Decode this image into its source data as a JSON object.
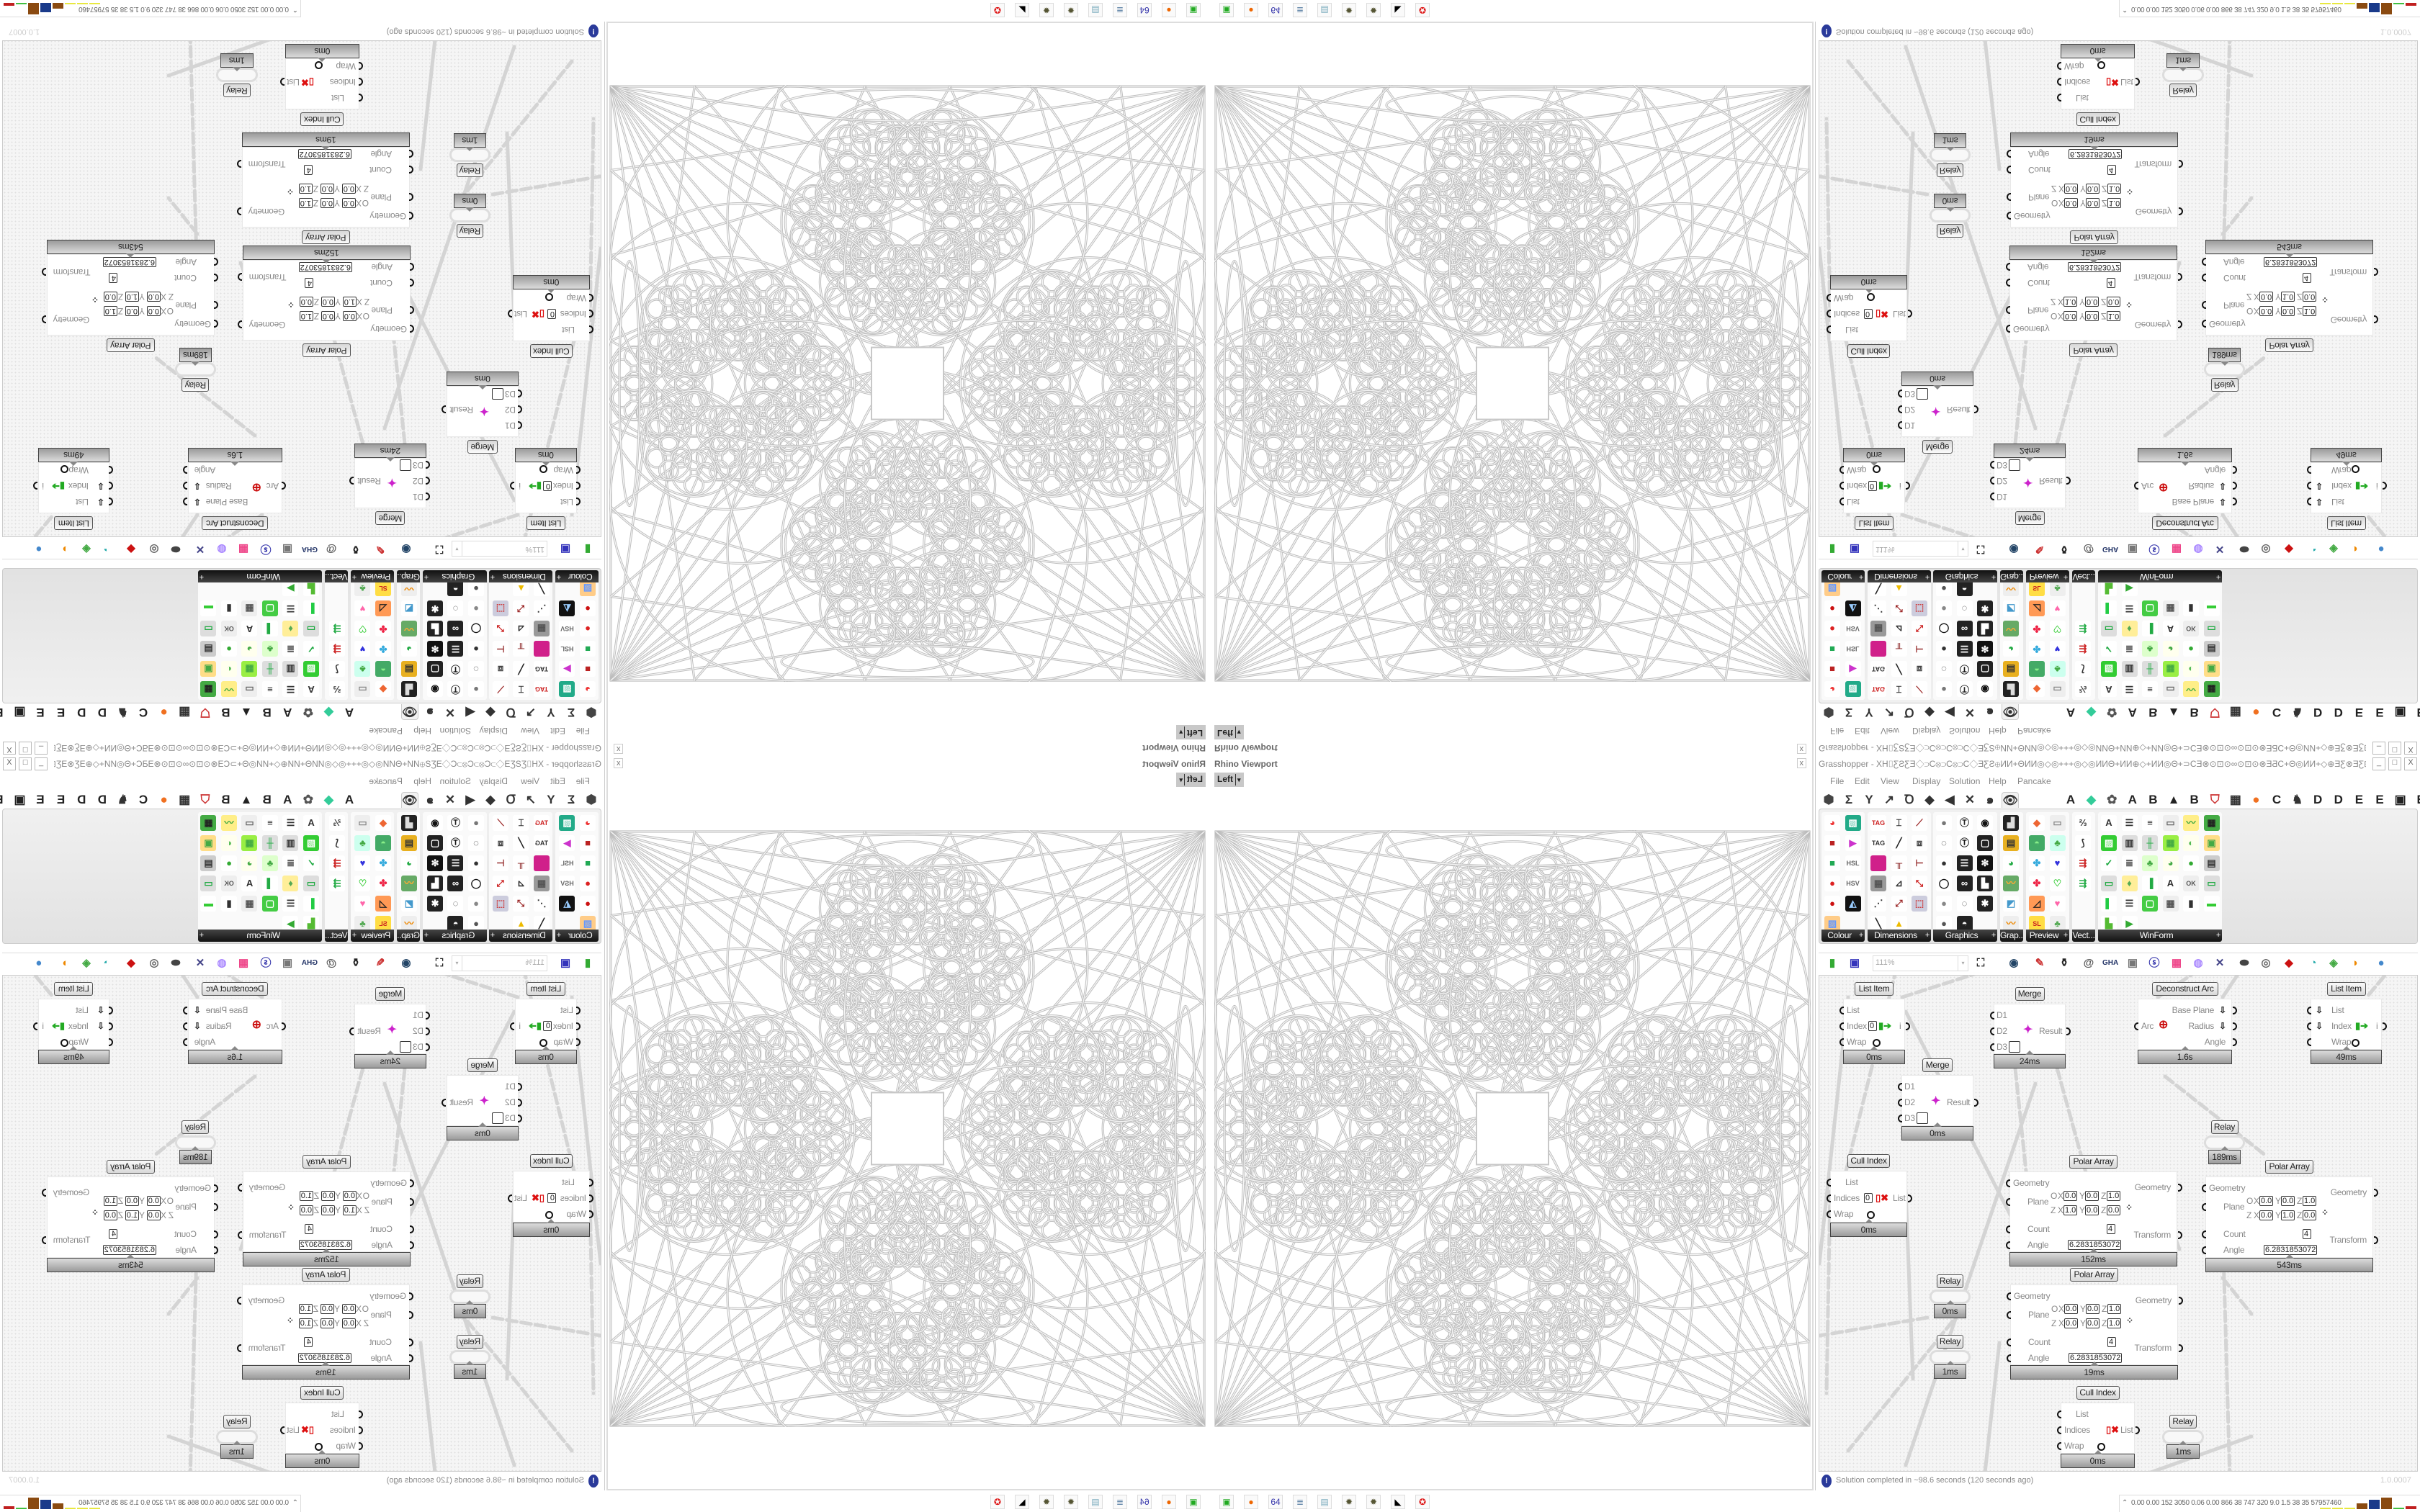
{
  "viewport": {
    "title": "Rhino Viewport",
    "view": "Left",
    "view_dropdown": "▾",
    "close": "x"
  },
  "grasshopper": {
    "title": "Grasshopper - XH⌷ƸƧƸƎ◇⊃C⊗⊃C⊗⊃C◇ƎƸƧ⊕ИИ+ΘИИ◎◇◎+++◎◇◎ИИΘ+ИИ⊕◇+ИИ◎Θ+⊃CƎ⊗⊙⊡⊙∞⊙⊡⊙⊗ƎƋC+Θ◎ИИ+◇⊕ƎƸ⊗ƎƸ⊞+ƸƧ+⊞ƎƸ⊗Ǝ⊕◇+⊗⊡ƎƸ⊞+◇+⊃C",
    "window_buttons": [
      "_",
      "□",
      "X"
    ],
    "menu": [
      "File",
      "Edit",
      "View",
      "Display",
      "Solution",
      "Help",
      "Pancake"
    ],
    "tabs": [
      {
        "icon": "params-icon",
        "glyph": "⬢",
        "color": "#444"
      },
      {
        "icon": "maths-icon",
        "glyph": "Σ",
        "color": "#333"
      },
      {
        "icon": "sets-icon",
        "glyph": "Y",
        "color": "#333"
      },
      {
        "icon": "vector-icon",
        "glyph": "↗",
        "color": "#333"
      },
      {
        "icon": "curve-icon",
        "glyph": "Ꝺ",
        "color": "#333"
      },
      {
        "icon": "surface-icon",
        "glyph": "◆",
        "color": "#333"
      },
      {
        "icon": "mesh-icon",
        "glyph": "◀",
        "color": "#333"
      },
      {
        "icon": "intersect-icon",
        "glyph": "✕",
        "color": "#333"
      },
      {
        "icon": "transform-icon",
        "glyph": "๑",
        "color": "#333"
      },
      {
        "icon": "display-icon",
        "glyph": "👁",
        "color": "#333",
        "selected": true
      },
      {
        "icon": "addon-a-icon",
        "glyph": "A",
        "color": "#222"
      },
      {
        "icon": "addon-gem-icon",
        "glyph": "◆",
        "color": "#3c9"
      },
      {
        "icon": "addon-gear-icon",
        "glyph": "✿",
        "color": "#555"
      },
      {
        "icon": "addon-a2-icon",
        "glyph": "A",
        "color": "#222"
      },
      {
        "icon": "addon-b-icon",
        "glyph": "B",
        "color": "#222"
      },
      {
        "icon": "addon-mountain-icon",
        "glyph": "▲",
        "color": "#222"
      },
      {
        "icon": "addon-b2-icon",
        "glyph": "B",
        "color": "#222"
      },
      {
        "icon": "addon-shield-icon",
        "glyph": "⛉",
        "color": "#c33"
      },
      {
        "icon": "addon-grid-icon",
        "glyph": "▦",
        "color": "#333"
      },
      {
        "icon": "addon-orange-icon",
        "glyph": "●",
        "color": "#f07020"
      },
      {
        "icon": "addon-c-icon",
        "glyph": "C",
        "color": "#222"
      },
      {
        "icon": "addon-bird-icon",
        "glyph": "♞",
        "color": "#333"
      },
      {
        "icon": "addon-d-icon",
        "glyph": "D",
        "color": "#222"
      },
      {
        "icon": "addon-d2-icon",
        "glyph": "D",
        "color": "#222"
      },
      {
        "icon": "addon-e-icon",
        "glyph": "E",
        "color": "#222"
      },
      {
        "icon": "addon-e2-icon",
        "glyph": "E",
        "color": "#222"
      },
      {
        "icon": "addon-chip-icon",
        "glyph": "▣",
        "color": "#222"
      },
      {
        "icon": "addon-e3-icon",
        "glyph": "E",
        "color": "#222"
      }
    ],
    "panels": [
      {
        "label": "Colour",
        "cols": 2,
        "icons": [
          [
            "◕",
            "#fff",
            "#e33"
          ],
          [
            "▧",
            "#2a8",
            "#fff"
          ],
          [
            "■",
            "#fff",
            "#b22"
          ],
          [
            "▶",
            "#fff",
            "#c3c"
          ],
          [
            "■",
            "#fff",
            "#2a5"
          ],
          [
            "HSL",
            "#fff",
            "#666"
          ],
          [
            "●",
            "#fff",
            "#d22"
          ],
          [
            "HSV",
            "#fff",
            "#666"
          ],
          [
            "●",
            "#fff",
            "#c11"
          ],
          [
            "◭",
            "#111",
            "#9cf"
          ],
          [
            "▨",
            "#fc8",
            "#69f"
          ]
        ]
      },
      {
        "label": "Dimensions",
        "cols": 3,
        "icons": [
          [
            "TAG",
            "#fff",
            "#c22"
          ],
          [
            "⌶",
            "#fff",
            "#333"
          ],
          [
            "⟋",
            "#fff",
            "#922"
          ],
          [
            "TAG",
            "#fff",
            "#333"
          ],
          [
            "╱",
            "#fff",
            "#222"
          ],
          [
            "⧈",
            "#fff",
            "#444"
          ],
          [
            "",
            "#d0208a",
            "#fff"
          ],
          [
            "╥",
            "#fff",
            "#822"
          ],
          [
            "⊢",
            "#fff",
            "#933"
          ],
          [
            "▦",
            "#999",
            "#555"
          ],
          [
            "⊿",
            "#fff",
            "#333"
          ],
          [
            "⤡",
            "#fff",
            "#c22"
          ],
          [
            "⋰",
            "#fff",
            "#333"
          ],
          [
            "⤢",
            "#fff",
            "#922"
          ],
          [
            "⬚",
            "#ccd",
            "#c33"
          ],
          [
            "╲",
            "#fff",
            "#222"
          ],
          [
            "▲",
            "#fff",
            "#eb0"
          ]
        ]
      },
      {
        "label": "Graphics",
        "cols": 3,
        "icons": [
          [
            "●",
            "#fff",
            "#777"
          ],
          [
            "Ⓣ",
            "#fff",
            "#222"
          ],
          [
            "◉",
            "#fff",
            "#111"
          ],
          [
            "◌",
            "#fff",
            "#222"
          ],
          [
            "Ⓣ",
            "#fff",
            "#111"
          ],
          [
            "▢",
            "#222",
            "#fff"
          ],
          [
            "●",
            "#fff",
            "#333"
          ],
          [
            "☰",
            "#222",
            "#fff"
          ],
          [
            "✻",
            "#111",
            "#fff"
          ],
          [
            "◯",
            "#fff",
            "#111"
          ],
          [
            "∞",
            "#222",
            "#fff"
          ],
          [
            "▙",
            "#222",
            "#fff"
          ],
          [
            "●",
            "#fff",
            "#888"
          ],
          [
            "◌",
            "#fff",
            "#333"
          ],
          [
            "✱",
            "#222",
            "#fff"
          ],
          [
            "●",
            "#fff",
            "#555"
          ],
          [
            "◓",
            "#222",
            "#fff"
          ]
        ]
      },
      {
        "label": "Grap...",
        "cols": 1,
        "icons": [
          [
            "▟",
            "#222",
            "#ddd"
          ],
          [
            "▤",
            "#e8b020",
            "#333"
          ],
          [
            "◕",
            "#fff",
            "#2a4"
          ],
          [
            "〰",
            "#6a6",
            "#fa3"
          ],
          [
            "◩",
            "#fff",
            "#49c"
          ],
          [
            "〰",
            "#eee",
            "#e80"
          ]
        ]
      },
      {
        "label": "Preview",
        "cols": 2,
        "icons": [
          [
            "◆",
            "#fff",
            "#e63"
          ],
          [
            "▭",
            "#eee",
            "#888"
          ],
          [
            "◓",
            "#4a6",
            "#8e8"
          ],
          [
            "♣",
            "#cfe",
            "#4a4"
          ],
          [
            "✤",
            "#fff",
            "#3ad"
          ],
          [
            "♥",
            "#fff",
            "#33d"
          ],
          [
            "✤",
            "#fff",
            "#e24"
          ],
          [
            "♡",
            "#fff",
            "#3c3"
          ],
          [
            "◿",
            "#f95",
            "#222"
          ],
          [
            "♥",
            "#fff",
            "#f6a"
          ],
          [
            "SL",
            "#fd4",
            "#c22"
          ],
          [
            "♣",
            "#eee",
            "#5a5"
          ]
        ]
      },
      {
        "label": "Vect...",
        "cols": 1,
        "icons": [
          [
            "⅔",
            "#fff",
            "#333"
          ],
          [
            "⟆",
            "#fff",
            "#333"
          ],
          [
            "⇶",
            "#fff",
            "#c22"
          ],
          [
            "⇶",
            "#fff",
            "#2a4"
          ]
        ]
      },
      {
        "label": "WinForm",
        "cols": 6,
        "icons": [
          [
            "A",
            "#fff",
            "#333"
          ],
          [
            "☰",
            "#fff",
            "#333"
          ],
          [
            "≡",
            "#fff",
            "#333"
          ],
          [
            "▭",
            "#eee",
            "#666"
          ],
          [
            "〰",
            "#fe8",
            "#4a4"
          ],
          [
            "▦",
            "#4a4",
            "#222"
          ],
          [
            "▨",
            "#3c3",
            "#fff"
          ],
          [
            "▥",
            "#ddd",
            "#333"
          ],
          [
            "╫",
            "#ddd",
            "#2a4"
          ],
          [
            "▦",
            "#9e4",
            "#4a4"
          ],
          [
            "◐",
            "#ffe",
            "#5b5"
          ],
          [
            "▣",
            "#fd8",
            "#4a4"
          ],
          [
            "✓",
            "#fff",
            "#2a4"
          ],
          [
            "≣",
            "#fff",
            "#333"
          ],
          [
            "♣",
            "#dfc",
            "#4a4"
          ],
          [
            "◕",
            "#ffe",
            "#4a4"
          ],
          [
            "●",
            "#fff",
            "#3a3"
          ],
          [
            "▤",
            "#ccc",
            "#333"
          ],
          [
            "▭",
            "#ddd",
            "#2a4"
          ],
          [
            "♦",
            "#fe9",
            "#5a5"
          ],
          [
            "▐",
            "#fff",
            "#2a4"
          ],
          [
            "A",
            "#fff",
            "#333"
          ],
          [
            "OK",
            "#eee",
            "#555"
          ],
          [
            "▭",
            "#ddd",
            "#2a4"
          ],
          [
            "▌",
            "#fff",
            "#2c4"
          ],
          [
            "☰",
            "#fff",
            "#333"
          ],
          [
            "▢",
            "#4c4",
            "#fff"
          ],
          [
            "▦",
            "#eee",
            "#555"
          ],
          [
            "▮",
            "#fff",
            "#333"
          ],
          [
            "▬",
            "#fff",
            "#3c3"
          ],
          [
            "▙",
            "#fff",
            "#5b3"
          ],
          [
            "▶",
            "#fff",
            "#3a3"
          ]
        ]
      }
    ],
    "toolbar": {
      "zoom": "111%",
      "icons": [
        [
          "new-file-icon",
          "▮",
          "#3a3"
        ],
        [
          "save-icon",
          "▣",
          "#33b"
        ],
        [
          "zoom-extents-icon",
          "⛶",
          "#222"
        ],
        [
          "preview-eye-icon",
          "◉",
          "#246"
        ],
        [
          "sketch-icon",
          "✎",
          "#c33"
        ],
        [
          "bake-icon",
          "⚱",
          "#222"
        ],
        [
          "email-icon",
          "@",
          "#555"
        ],
        [
          "gha-icon",
          "GHA",
          "#236"
        ],
        [
          "picture-icon",
          "▣",
          "#777"
        ],
        [
          "search-icon",
          "ⓢ",
          "#33a"
        ],
        [
          "package-icon",
          "▦",
          "#e48"
        ],
        [
          "bulb-icon",
          "◍",
          "#a8f"
        ],
        [
          "cross-icon",
          "✕",
          "#448"
        ],
        [
          "capsule-icon",
          "⬬",
          "#444"
        ],
        [
          "ring-icon",
          "◎",
          "#666"
        ],
        [
          "gem-icon",
          "◆",
          "#c11"
        ],
        [
          "bracelet-icon",
          "◔",
          "#2aa"
        ],
        [
          "leaf-icon",
          "◈",
          "#4a4"
        ],
        [
          "sphere-icon",
          "◑",
          "#e80"
        ],
        [
          "blob-icon",
          "●",
          "#48c"
        ]
      ]
    },
    "components": [
      {
        "kind": "list",
        "title": "List Item",
        "inputs": [
          "List",
          "Index",
          "Wrap"
        ],
        "index_value": "0",
        "output": "i",
        "footer": "0ms"
      },
      {
        "kind": "merge",
        "title": "Merge",
        "inputs": [
          "D1",
          "D2",
          "D3"
        ],
        "output": "Result",
        "footer": "24ms"
      },
      {
        "kind": "arc",
        "title": "Deconstruct Arc",
        "input": "Arc",
        "outputs": [
          "Base Plane",
          "Radius",
          "Angle"
        ],
        "footer": "1.6s"
      },
      {
        "kind": "list",
        "title": "List Item",
        "inputs": [
          "List",
          "Index",
          "Wrap"
        ],
        "output": "i",
        "footer": "49ms",
        "arrows": true
      },
      {
        "kind": "merge",
        "title": "Merge",
        "inputs": [
          "D1",
          "D2",
          "D3"
        ],
        "output": "Result",
        "footer": "0ms"
      },
      {
        "kind": "relay",
        "title": "Relay",
        "footer": "189ms"
      },
      {
        "kind": "cull",
        "title": "Cull Index",
        "inputs": [
          "List",
          "Indices",
          "Wrap"
        ],
        "index_value": "0",
        "output": "List",
        "footer": "0ms"
      },
      {
        "kind": "polar",
        "title": "Polar Array",
        "inputs": [
          "Geometry",
          "Plane",
          "Count",
          "Angle"
        ],
        "outputs": [
          "Geometry",
          "Transform"
        ],
        "origin": [
          "0.0",
          "0.0",
          "1.0"
        ],
        "zaxis": [
          "1.0",
          "0.0",
          "0.0"
        ],
        "count": "4",
        "angle": "6.2831853072",
        "footer": "152ms"
      },
      {
        "kind": "polar",
        "title": "Polar Array",
        "inputs": [
          "Geometry",
          "Plane",
          "Count",
          "Angle"
        ],
        "outputs": [
          "Geometry",
          "Transform"
        ],
        "origin": [
          "0.0",
          "0.0",
          "1.0"
        ],
        "zaxis": [
          "0.0",
          "1.0",
          "0.0"
        ],
        "count": "4",
        "angle": "6.2831853072",
        "footer": "543ms"
      },
      {
        "kind": "relay",
        "title": "Relay",
        "footer": "0ms"
      },
      {
        "kind": "relay",
        "title": "Relay",
        "footer": "1ms"
      },
      {
        "kind": "polar",
        "title": "Polar Array",
        "inputs": [
          "Geometry",
          "Plane",
          "Count",
          "Angle"
        ],
        "outputs": [
          "Geometry",
          "Transform"
        ],
        "origin": [
          "0.0",
          "0.0",
          "1.0"
        ],
        "zaxis": [
          "0.0",
          "0.0",
          "1.0"
        ],
        "count": "4",
        "angle": "6.2831853072",
        "footer": "19ms"
      },
      {
        "kind": "cull",
        "title": "Cull Index",
        "inputs": [
          "List",
          "Indices",
          "Wrap"
        ],
        "output": "List",
        "footer": "0ms"
      },
      {
        "kind": "relay",
        "title": "Relay",
        "footer": "1ms"
      }
    ],
    "plane_labels": {
      "origin": "O",
      "zaxis": "Z",
      "x": "X",
      "y": "Y",
      "z": "Z"
    },
    "status": {
      "message": "Solution completed in ~98.6 seconds (120 seconds ago)",
      "version": "1.0.0007"
    }
  },
  "taskbar": {
    "apps": [
      {
        "icon": "grasshopper-app-icon",
        "glyph": "▣",
        "color": "#2a2"
      },
      {
        "icon": "firefox-icon",
        "glyph": "●",
        "color": "#e60"
      },
      {
        "icon": "floppy-64-icon",
        "glyph": "64",
        "color": "#33a"
      },
      {
        "icon": "script-icon",
        "glyph": "≣",
        "color": "#68a"
      },
      {
        "icon": "notepad-icon",
        "glyph": "▤",
        "color": "#7ab"
      },
      {
        "icon": "gear-icon",
        "glyph": "✹",
        "color": "#553"
      },
      {
        "icon": "gear-icon-2",
        "glyph": "✹",
        "color": "#553"
      },
      {
        "icon": "inkscape-icon",
        "glyph": "◣",
        "color": "#000"
      },
      {
        "icon": "red-app-icon",
        "glyph": "✪",
        "color": "#d11"
      }
    ],
    "expand": "⌃",
    "stats": "0.00 0.00 152 3050 0.06 0.00 866 38 747 320 9.0 1.5 38 35 57957460",
    "meters": [
      {
        "color": "#e8e840",
        "level": 0.05
      },
      {
        "color": "#e8e840",
        "level": 0.05
      },
      {
        "color": "#e8e840",
        "level": 0.05
      },
      {
        "color": "#8a4a10",
        "level": 0.45
      },
      {
        "color": "#1a3a8a",
        "level": 0.75
      },
      {
        "color": "#8a4a10",
        "level": 0.9
      },
      {
        "color": "#40c040",
        "level": 0.05
      },
      {
        "color": "#c02020",
        "level": 0.2
      }
    ]
  }
}
